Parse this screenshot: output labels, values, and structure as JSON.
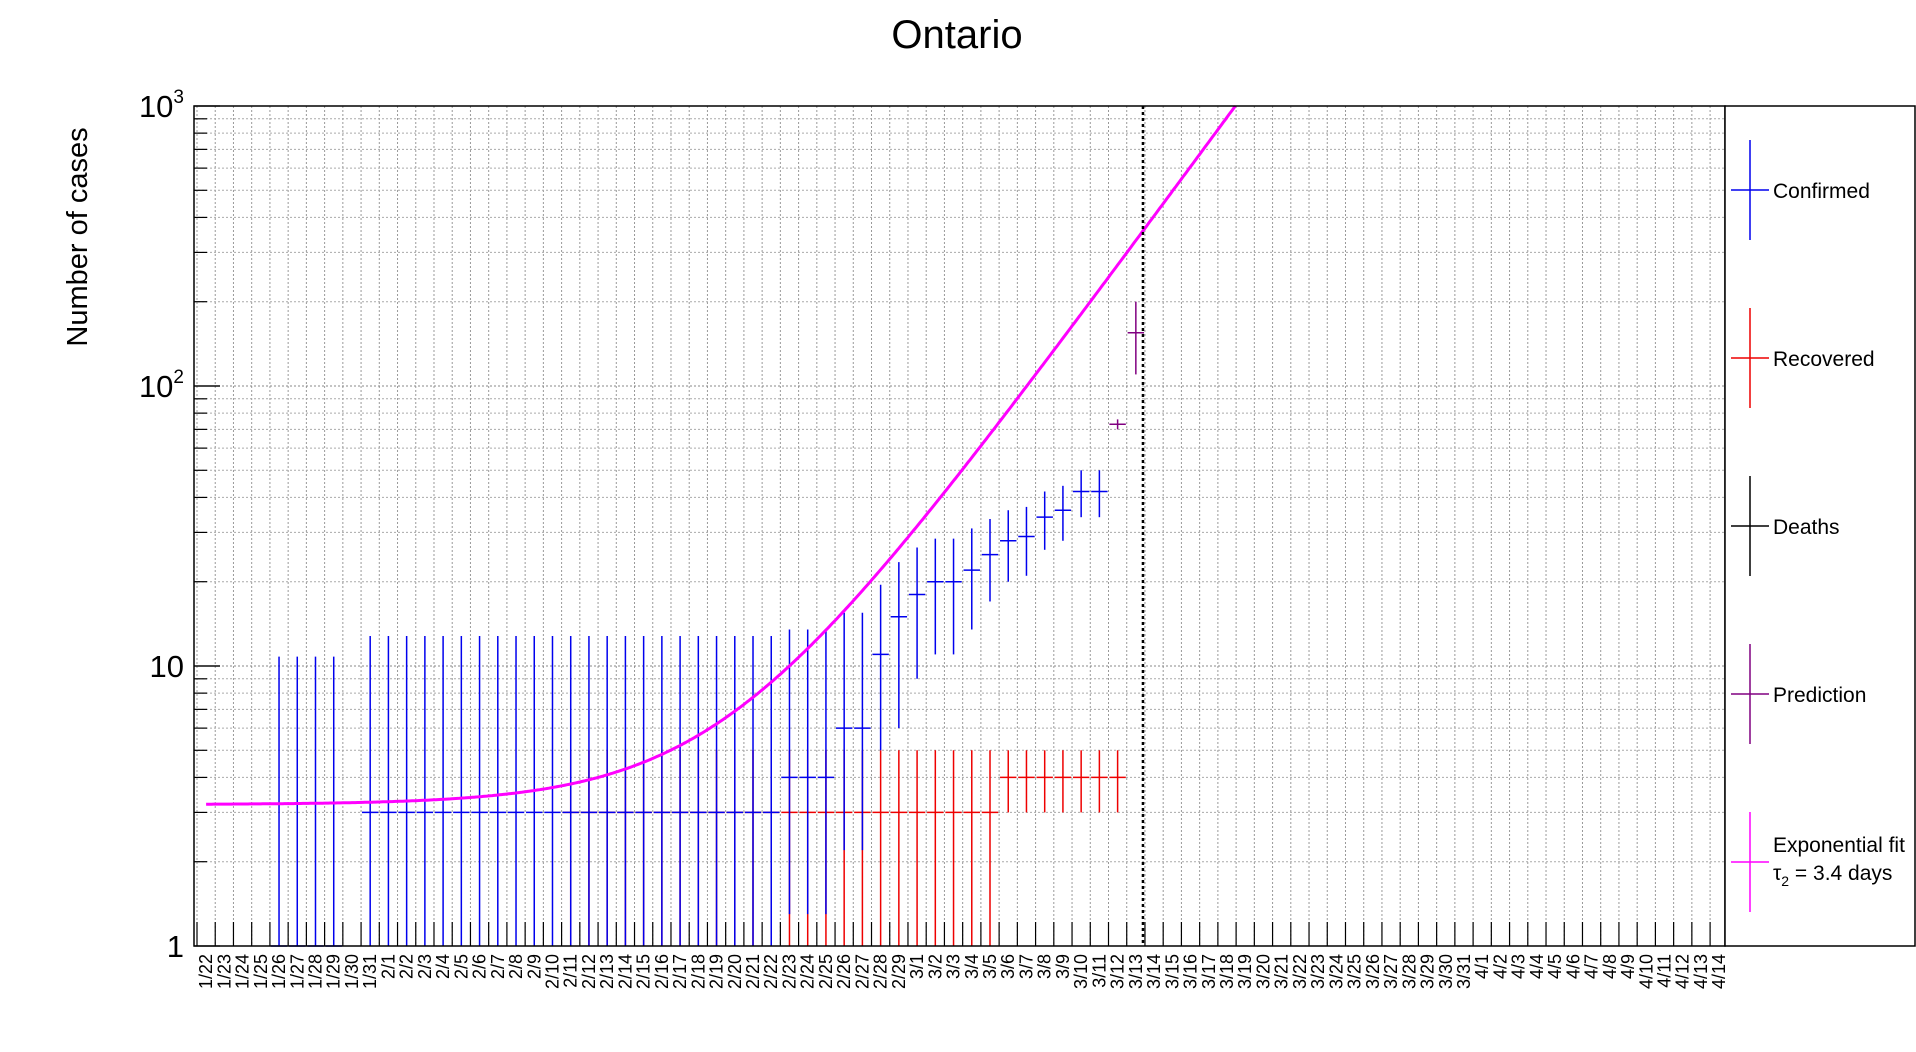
{
  "chart_data": {
    "type": "scatter",
    "title": "Ontario",
    "ylabel": "Number of cases",
    "xlabel": "",
    "yscale": "log",
    "ylim": [
      1,
      1000
    ],
    "grid": true,
    "legend_position": "right",
    "y_ticks": [
      {
        "value": 1,
        "base": "1",
        "exp": ""
      },
      {
        "value": 10,
        "base": "10",
        "exp": ""
      },
      {
        "value": 100,
        "base": "10",
        "exp": "2"
      },
      {
        "value": 1000,
        "base": "10",
        "exp": "3"
      }
    ],
    "categories": [
      "1/22",
      "1/23",
      "1/24",
      "1/25",
      "1/26",
      "1/27",
      "1/28",
      "1/29",
      "1/30",
      "1/31",
      "2/1",
      "2/2",
      "2/3",
      "2/4",
      "2/5",
      "2/6",
      "2/7",
      "2/8",
      "2/9",
      "2/10",
      "2/11",
      "2/12",
      "2/13",
      "2/14",
      "2/15",
      "2/16",
      "2/17",
      "2/18",
      "2/19",
      "2/20",
      "2/21",
      "2/22",
      "2/23",
      "2/24",
      "2/25",
      "2/26",
      "2/27",
      "2/28",
      "2/29",
      "3/1",
      "3/2",
      "3/3",
      "3/4",
      "3/5",
      "3/6",
      "3/7",
      "3/8",
      "3/9",
      "3/10",
      "3/11",
      "3/12",
      "3/13",
      "3/14",
      "3/15",
      "3/16",
      "3/17",
      "3/18",
      "3/19",
      "3/20",
      "3/21",
      "3/22",
      "3/23",
      "3/24",
      "3/25",
      "3/26",
      "3/27",
      "3/28",
      "3/29",
      "3/30",
      "3/31",
      "4/1",
      "4/2",
      "4/3",
      "4/4",
      "4/5",
      "4/6",
      "4/7",
      "4/8",
      "4/9",
      "4/10",
      "4/11",
      "4/12",
      "4/13",
      "4/14"
    ],
    "prediction_date": "3/14",
    "series": [
      {
        "name": "Confirmed",
        "color": "#0000ee",
        "points": [
          {
            "x": "1/26",
            "y": 1,
            "lo": 1,
            "hi": 10.8
          },
          {
            "x": "1/27",
            "y": 1,
            "lo": 1,
            "hi": 10.8
          },
          {
            "x": "1/28",
            "y": 1,
            "lo": 1,
            "hi": 10.8
          },
          {
            "x": "1/29",
            "y": 1,
            "lo": 1,
            "hi": 10.8
          },
          {
            "x": "1/31",
            "y": 3,
            "lo": 1,
            "hi": 12.8
          },
          {
            "x": "2/1",
            "y": 3,
            "lo": 1,
            "hi": 12.8
          },
          {
            "x": "2/2",
            "y": 3,
            "lo": 1,
            "hi": 12.8
          },
          {
            "x": "2/3",
            "y": 3,
            "lo": 1,
            "hi": 12.8
          },
          {
            "x": "2/4",
            "y": 3,
            "lo": 1,
            "hi": 12.8
          },
          {
            "x": "2/5",
            "y": 3,
            "lo": 1,
            "hi": 12.8
          },
          {
            "x": "2/6",
            "y": 3,
            "lo": 1,
            "hi": 12.8
          },
          {
            "x": "2/7",
            "y": 3,
            "lo": 1,
            "hi": 12.8
          },
          {
            "x": "2/8",
            "y": 3,
            "lo": 1,
            "hi": 12.8
          },
          {
            "x": "2/9",
            "y": 3,
            "lo": 1,
            "hi": 12.8
          },
          {
            "x": "2/10",
            "y": 3,
            "lo": 1,
            "hi": 12.8
          },
          {
            "x": "2/11",
            "y": 3,
            "lo": 1,
            "hi": 12.8
          },
          {
            "x": "2/12",
            "y": 3,
            "lo": 1,
            "hi": 12.8
          },
          {
            "x": "2/13",
            "y": 3,
            "lo": 1,
            "hi": 12.8
          },
          {
            "x": "2/14",
            "y": 3,
            "lo": 1,
            "hi": 12.8
          },
          {
            "x": "2/15",
            "y": 3,
            "lo": 1,
            "hi": 12.8
          },
          {
            "x": "2/16",
            "y": 3,
            "lo": 1,
            "hi": 12.8
          },
          {
            "x": "2/17",
            "y": 3,
            "lo": 1,
            "hi": 12.8
          },
          {
            "x": "2/18",
            "y": 3,
            "lo": 1,
            "hi": 12.8
          },
          {
            "x": "2/19",
            "y": 3,
            "lo": 1,
            "hi": 12.8
          },
          {
            "x": "2/20",
            "y": 3,
            "lo": 1,
            "hi": 12.8
          },
          {
            "x": "2/21",
            "y": 3,
            "lo": 1,
            "hi": 12.8
          },
          {
            "x": "2/22",
            "y": 3,
            "lo": 1,
            "hi": 12.8
          },
          {
            "x": "2/23",
            "y": 4,
            "lo": 1.3,
            "hi": 13.5
          },
          {
            "x": "2/24",
            "y": 4,
            "lo": 1.3,
            "hi": 13.5
          },
          {
            "x": "2/25",
            "y": 4,
            "lo": 1.3,
            "hi": 13.5
          },
          {
            "x": "2/26",
            "y": 6,
            "lo": 2.2,
            "hi": 15.5
          },
          {
            "x": "2/27",
            "y": 6,
            "lo": 2.2,
            "hi": 15.5
          },
          {
            "x": "2/28",
            "y": 11,
            "lo": 5,
            "hi": 19.5
          },
          {
            "x": "2/29",
            "y": 15,
            "lo": 6,
            "hi": 23.5
          },
          {
            "x": "3/1",
            "y": 18,
            "lo": 9,
            "hi": 26.5
          },
          {
            "x": "3/2",
            "y": 20,
            "lo": 11,
            "hi": 28.5
          },
          {
            "x": "3/3",
            "y": 20,
            "lo": 11,
            "hi": 28.5
          },
          {
            "x": "3/4",
            "y": 22,
            "lo": 13.5,
            "hi": 31
          },
          {
            "x": "3/5",
            "y": 25,
            "lo": 17,
            "hi": 33.5
          },
          {
            "x": "3/6",
            "y": 28,
            "lo": 20,
            "hi": 36
          },
          {
            "x": "3/7",
            "y": 29,
            "lo": 21,
            "hi": 37
          },
          {
            "x": "3/8",
            "y": 34,
            "lo": 26,
            "hi": 42
          },
          {
            "x": "3/9",
            "y": 36,
            "lo": 28,
            "hi": 44
          },
          {
            "x": "3/10",
            "y": 42,
            "lo": 34,
            "hi": 50
          },
          {
            "x": "3/11",
            "y": 42,
            "lo": 34,
            "hi": 50
          }
        ]
      },
      {
        "name": "Recovered",
        "color": "#ee0000",
        "points": [
          {
            "x": "2/11",
            "y": 3,
            "lo": 1,
            "hi": 5
          },
          {
            "x": "2/12",
            "y": 3,
            "lo": 1,
            "hi": 5
          },
          {
            "x": "2/13",
            "y": 3,
            "lo": 1,
            "hi": 5
          },
          {
            "x": "2/14",
            "y": 3,
            "lo": 1,
            "hi": 5
          },
          {
            "x": "2/15",
            "y": 3,
            "lo": 1,
            "hi": 5
          },
          {
            "x": "2/16",
            "y": 3,
            "lo": 1,
            "hi": 5
          },
          {
            "x": "2/17",
            "y": 3,
            "lo": 1,
            "hi": 5
          },
          {
            "x": "2/18",
            "y": 3,
            "lo": 1,
            "hi": 5
          },
          {
            "x": "2/19",
            "y": 3,
            "lo": 1,
            "hi": 5
          },
          {
            "x": "2/20",
            "y": 3,
            "lo": 1,
            "hi": 5
          },
          {
            "x": "2/21",
            "y": 3,
            "lo": 1,
            "hi": 5
          },
          {
            "x": "2/22",
            "y": 3,
            "lo": 1,
            "hi": 5
          },
          {
            "x": "2/23",
            "y": 3,
            "lo": 1,
            "hi": 5
          },
          {
            "x": "2/24",
            "y": 3,
            "lo": 1,
            "hi": 5
          },
          {
            "x": "2/25",
            "y": 3,
            "lo": 1,
            "hi": 5
          },
          {
            "x": "2/26",
            "y": 3,
            "lo": 1,
            "hi": 5
          },
          {
            "x": "2/27",
            "y": 3,
            "lo": 1,
            "hi": 5
          },
          {
            "x": "2/28",
            "y": 3,
            "lo": 1,
            "hi": 5
          },
          {
            "x": "2/29",
            "y": 3,
            "lo": 1,
            "hi": 5
          },
          {
            "x": "3/1",
            "y": 3,
            "lo": 1,
            "hi": 5
          },
          {
            "x": "3/2",
            "y": 3,
            "lo": 1,
            "hi": 5
          },
          {
            "x": "3/3",
            "y": 3,
            "lo": 1,
            "hi": 5
          },
          {
            "x": "3/4",
            "y": 3,
            "lo": 1,
            "hi": 5
          },
          {
            "x": "3/5",
            "y": 3,
            "lo": 1,
            "hi": 5
          },
          {
            "x": "3/6",
            "y": 4,
            "lo": 3,
            "hi": 5
          },
          {
            "x": "3/7",
            "y": 4,
            "lo": 3,
            "hi": 5
          },
          {
            "x": "3/8",
            "y": 4,
            "lo": 3,
            "hi": 5
          },
          {
            "x": "3/9",
            "y": 4,
            "lo": 3,
            "hi": 5
          },
          {
            "x": "3/10",
            "y": 4,
            "lo": 3,
            "hi": 5
          },
          {
            "x": "3/11",
            "y": 4,
            "lo": 3,
            "hi": 5
          },
          {
            "x": "3/12",
            "y": 4,
            "lo": 3,
            "hi": 5
          }
        ]
      },
      {
        "name": "Deaths",
        "color": "#000000",
        "points": []
      },
      {
        "name": "Prediction",
        "color": "#800080",
        "points": [
          {
            "x": "3/12",
            "y": 73,
            "lo": 70,
            "hi": 76
          },
          {
            "x": "3/13",
            "y": 155,
            "lo": 110,
            "hi": 200
          }
        ]
      },
      {
        "name": "Exponential fit",
        "name_line2": "τ",
        "name_line2_sub": "2",
        "name_line2_rest": " = 3.4 days",
        "color": "#ff00ff",
        "type": "line",
        "baseline": 3.2,
        "amplitude": 0.01,
        "ref_date": "1/22",
        "doubling_days": 3.4,
        "x_start": "1/22",
        "x_end": "3/26"
      }
    ]
  }
}
